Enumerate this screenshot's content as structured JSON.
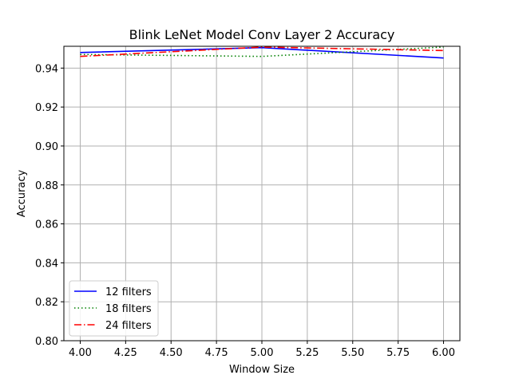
{
  "chart_data": {
    "type": "line",
    "title": "Blink LeNet Model Conv Layer 2 Accuracy",
    "xlabel": "Window Size",
    "ylabel": "Accuracy",
    "xlim": [
      3.91,
      6.09
    ],
    "ylim": [
      0.8,
      0.9512
    ],
    "xticks": [
      "4.00",
      "4.25",
      "4.50",
      "4.75",
      "5.00",
      "5.25",
      "5.50",
      "5.75",
      "6.00"
    ],
    "yticks": [
      "0.80",
      "0.82",
      "0.84",
      "0.86",
      "0.88",
      "0.90",
      "0.92",
      "0.94"
    ],
    "grid": true,
    "legend_position": "lower-left",
    "x": [
      4,
      5,
      6
    ],
    "series": [
      {
        "name": "12 filters",
        "values": [
          0.948,
          0.9505,
          0.9452
        ],
        "color": "#0000ff",
        "style": "solid"
      },
      {
        "name": "18 filters",
        "values": [
          0.947,
          0.946,
          0.9508
        ],
        "color": "#008000",
        "style": "dotted"
      },
      {
        "name": "24 filters",
        "values": [
          0.946,
          0.9508,
          0.949
        ],
        "color": "#ff0000",
        "style": "dashdot"
      }
    ]
  }
}
